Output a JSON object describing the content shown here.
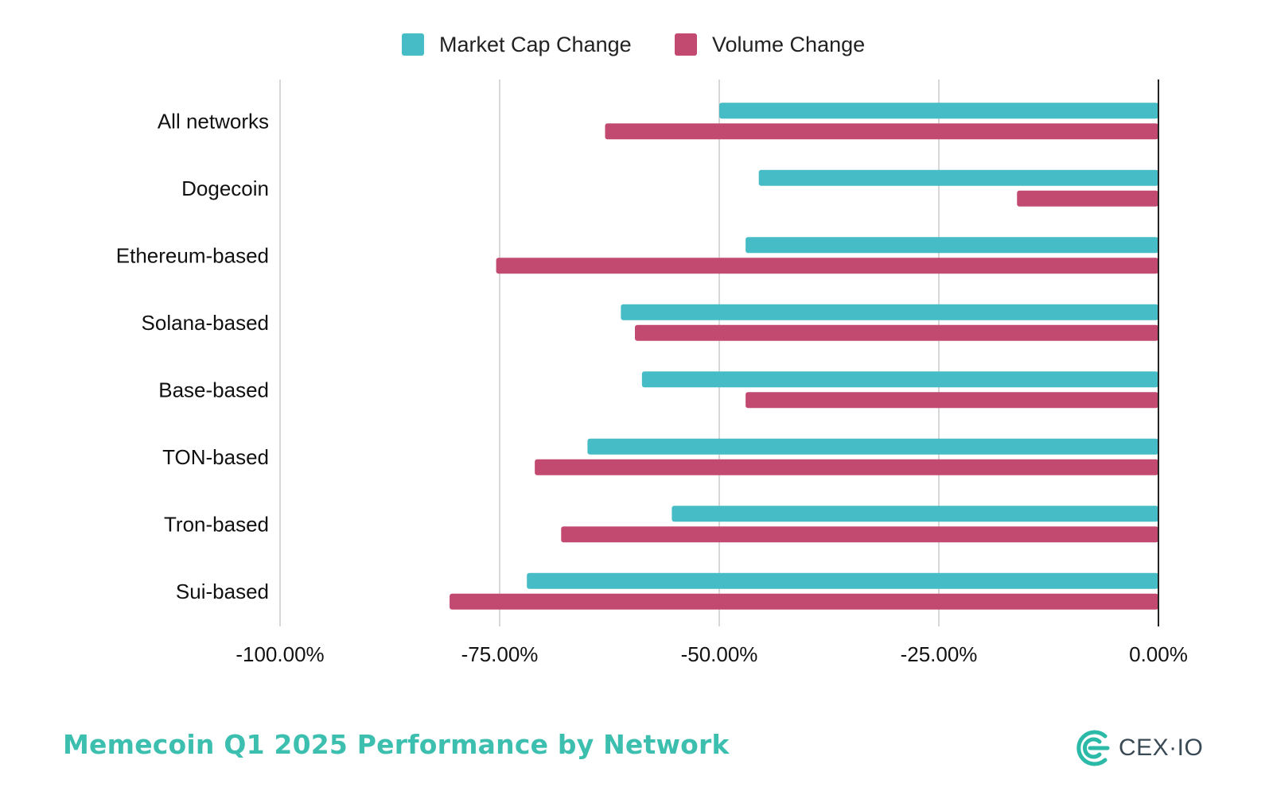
{
  "chart_data": {
    "type": "bar",
    "orientation": "horizontal",
    "title": "Memecoin Q1 2025 Performance by Network",
    "categories": [
      "All networks",
      "Dogecoin",
      "Ethereum-based",
      "Solana-based",
      "Base-based",
      "TON-based",
      "Tron-based",
      "Sui-based"
    ],
    "series": [
      {
        "name": "Market Cap Change",
        "color": "#45bcc6",
        "values": [
          -50.0,
          -45.5,
          -47.0,
          -61.2,
          -58.8,
          -65.0,
          -55.4,
          -71.9
        ]
      },
      {
        "name": "Volume Change",
        "color": "#c24a70",
        "values": [
          -63.0,
          -16.1,
          -75.4,
          -59.6,
          -47.0,
          -71.0,
          -68.0,
          -80.7
        ]
      }
    ],
    "xlim": [
      -100,
      0
    ],
    "xticks": [
      -100,
      -75,
      -50,
      -25,
      0
    ],
    "xtick_labels": [
      "-100.00%",
      "-75.00%",
      "-50.00%",
      "-25.00%",
      "0.00%"
    ],
    "grid": "vertical",
    "legend_position": "top"
  },
  "footer": {
    "title": "Memecoin Q1 2025 Performance by Network",
    "title_color": "#3dbfb0",
    "brand_name": "CEX·IO",
    "brand_icon": "cex-io-logo-icon",
    "brand_color": "#2bb9a8"
  }
}
